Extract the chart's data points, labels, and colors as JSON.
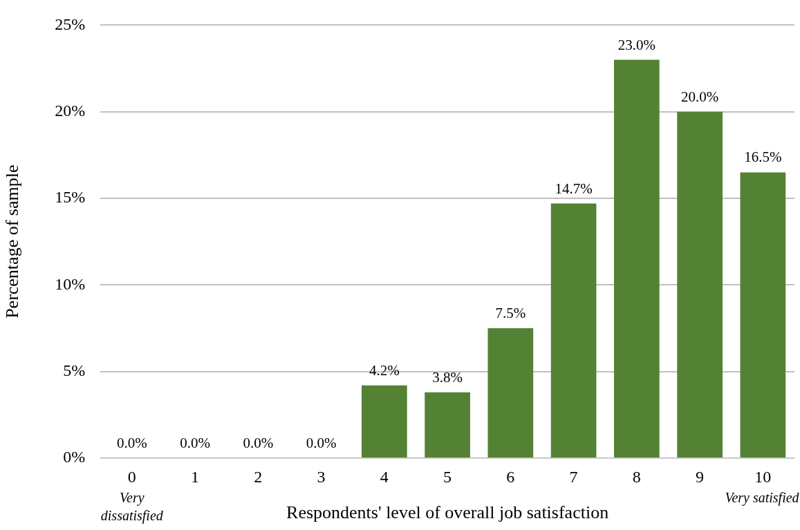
{
  "chart_data": {
    "type": "bar",
    "xlabel": "Respondents' level of overall job satisfaction",
    "ylabel": "Percentage of sample",
    "categories": [
      "0",
      "1",
      "2",
      "3",
      "4",
      "5",
      "6",
      "7",
      "8",
      "9",
      "10"
    ],
    "values": [
      0.0,
      0.0,
      0.0,
      0.0,
      4.2,
      3.8,
      7.5,
      14.7,
      23.0,
      20.0,
      16.5
    ],
    "value_labels": [
      "0.0%",
      "0.0%",
      "0.0%",
      "0.0%",
      "4.2%",
      "3.8%",
      "7.5%",
      "14.7%",
      "23.0%",
      "20.0%",
      "16.5%"
    ],
    "color": "#548235",
    "ylim": [
      0,
      25
    ],
    "yticks": [
      {
        "value": 0,
        "label": "0%"
      },
      {
        "value": 5,
        "label": "5%"
      },
      {
        "value": 10,
        "label": "10%"
      },
      {
        "value": 15,
        "label": "15%"
      },
      {
        "value": 20,
        "label": "20%"
      },
      {
        "value": 25,
        "label": "25%"
      }
    ],
    "grid": "y",
    "annotations": [
      "Very dissatisfied",
      "Very satisfied"
    ]
  }
}
